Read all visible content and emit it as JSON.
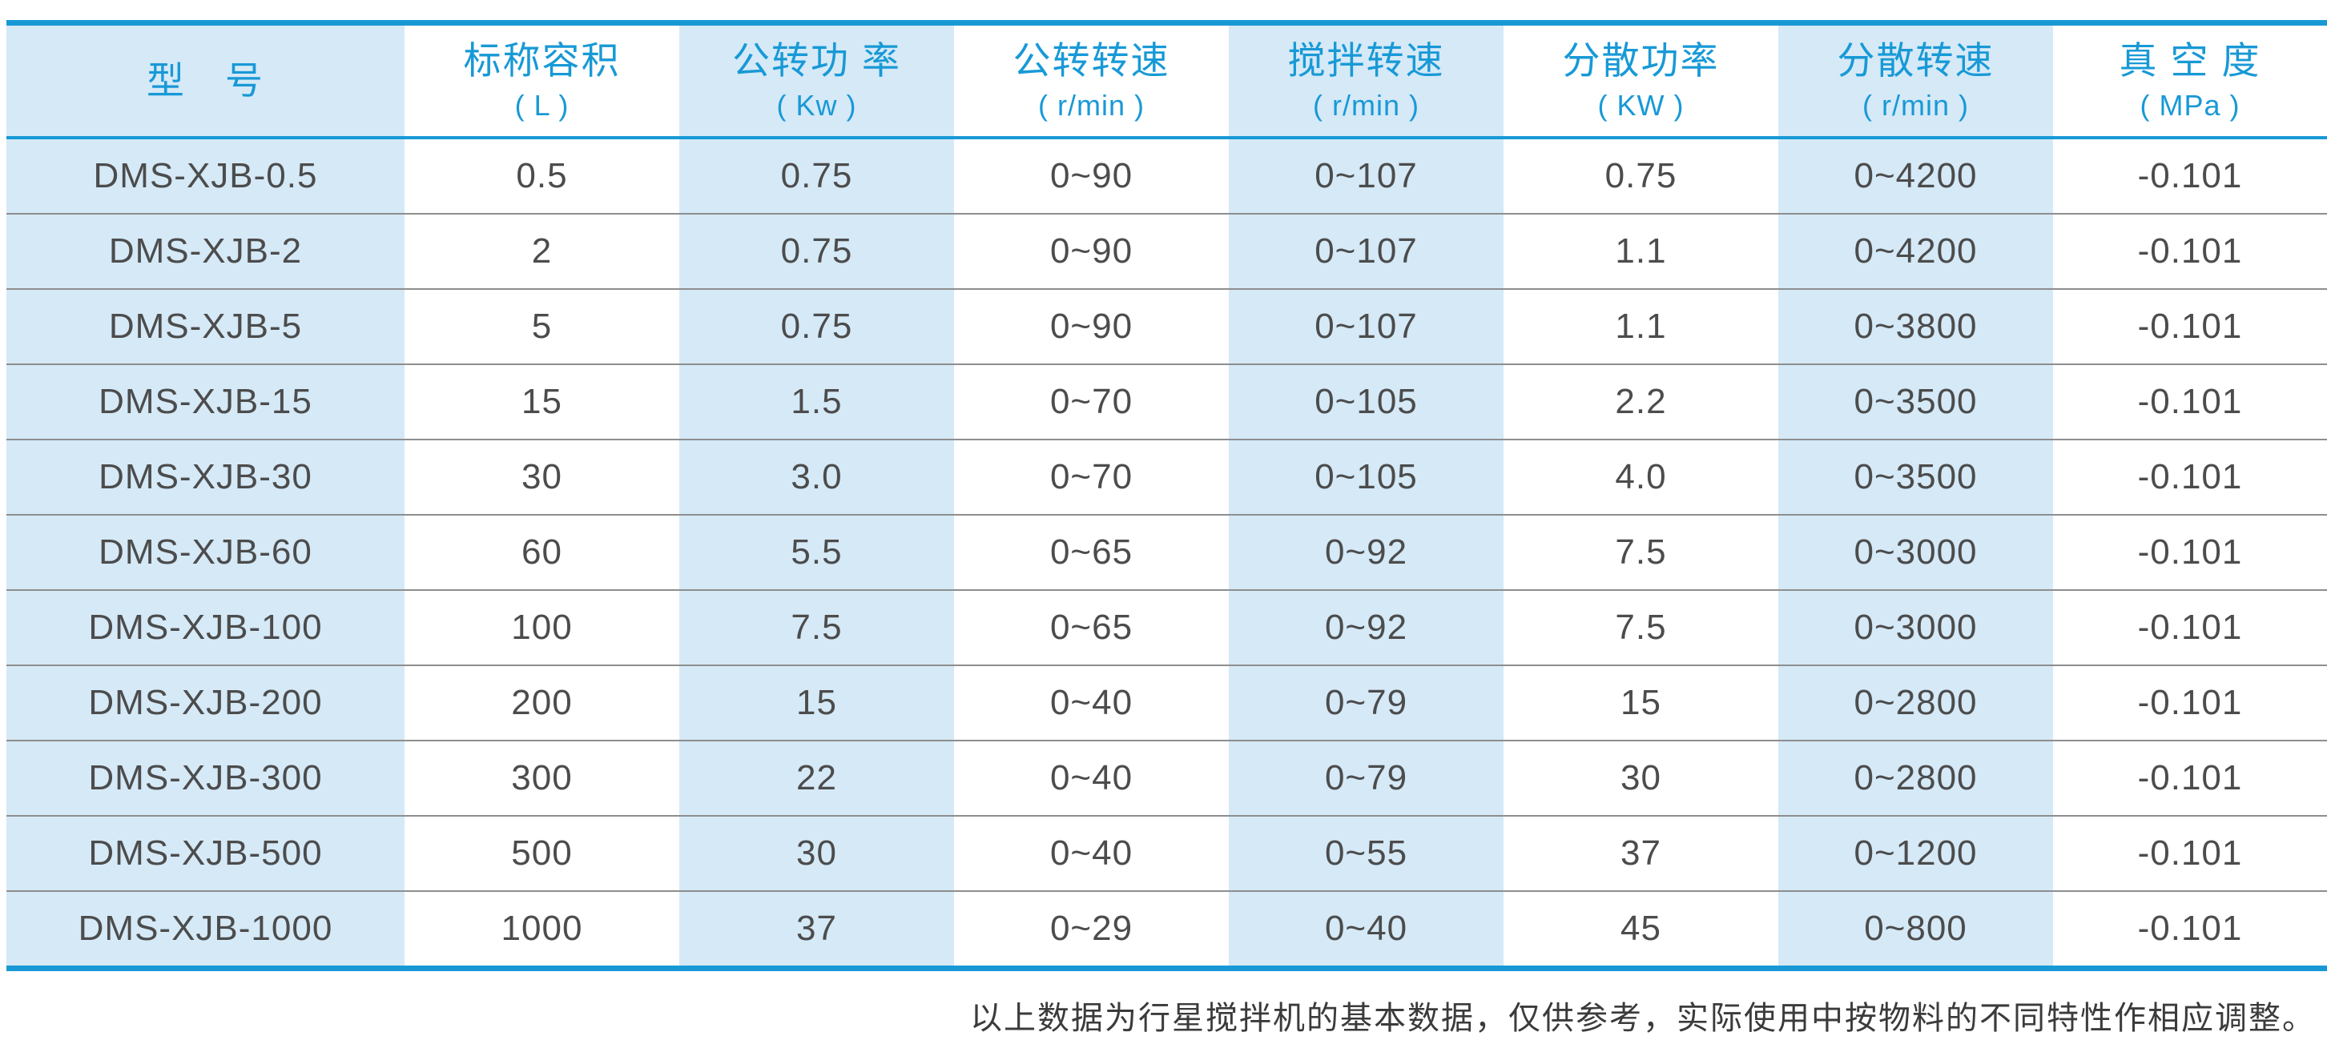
{
  "colors": {
    "accent_blue": "#1899d6",
    "stripe_light_blue": "#d5e9f7",
    "row_divider_gray": "#8e8e8e",
    "body_text": "#4c4c4c"
  },
  "table": {
    "headers": [
      {
        "title": "型　号",
        "unit": ""
      },
      {
        "title": "标称容积",
        "unit": "( L )"
      },
      {
        "title": "公转功 率",
        "unit": "( Kw )"
      },
      {
        "title": "公转转速",
        "unit": "( r/min )"
      },
      {
        "title": "搅拌转速",
        "unit": "( r/min )"
      },
      {
        "title": "分散功率",
        "unit": "( KW )"
      },
      {
        "title": "分散转速",
        "unit": "( r/min )"
      },
      {
        "title": "真 空 度",
        "unit": "( MPa )"
      }
    ],
    "rows": [
      [
        "DMS-XJB-0.5",
        "0.5",
        "0.75",
        "0~90",
        "0~107",
        "0.75",
        "0~4200",
        "-0.101"
      ],
      [
        "DMS-XJB-2",
        "2",
        "0.75",
        "0~90",
        "0~107",
        "1.1",
        "0~4200",
        "-0.101"
      ],
      [
        "DMS-XJB-5",
        "5",
        "0.75",
        "0~90",
        "0~107",
        "1.1",
        "0~3800",
        "-0.101"
      ],
      [
        "DMS-XJB-15",
        "15",
        "1.5",
        "0~70",
        "0~105",
        "2.2",
        "0~3500",
        "-0.101"
      ],
      [
        "DMS-XJB-30",
        "30",
        "3.0",
        "0~70",
        "0~105",
        "4.0",
        "0~3500",
        "-0.101"
      ],
      [
        "DMS-XJB-60",
        "60",
        "5.5",
        "0~65",
        "0~92",
        "7.5",
        "0~3000",
        "-0.101"
      ],
      [
        "DMS-XJB-100",
        "100",
        "7.5",
        "0~65",
        "0~92",
        "7.5",
        "0~3000",
        "-0.101"
      ],
      [
        "DMS-XJB-200",
        "200",
        "15",
        "0~40",
        "0~79",
        "15",
        "0~2800",
        "-0.101"
      ],
      [
        "DMS-XJB-300",
        "300",
        "22",
        "0~40",
        "0~79",
        "30",
        "0~2800",
        "-0.101"
      ],
      [
        "DMS-XJB-500",
        "500",
        "30",
        "0~40",
        "0~55",
        "37",
        "0~1200",
        "-0.101"
      ],
      [
        "DMS-XJB-1000",
        "1000",
        "37",
        "0~29",
        "0~40",
        "45",
        "0~800",
        "-0.101"
      ]
    ]
  },
  "footnote": {
    "text": "以上数据为行星搅拌机的基本数据，仅供参考，实际使用中按物料的不同特性作相应调整。"
  }
}
